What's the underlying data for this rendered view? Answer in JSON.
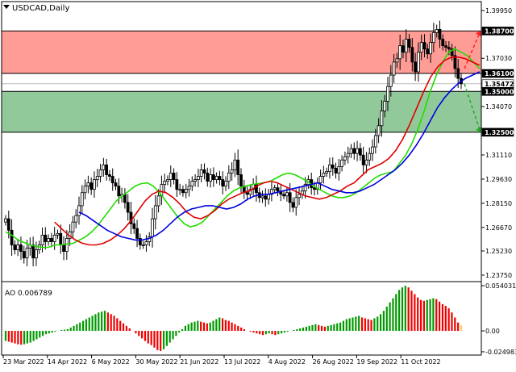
{
  "symbol_label": "USDCAD,Daily",
  "chart_data": [
    {
      "type": "candlestick",
      "title": "USDCAD,Daily",
      "ylim": [
        1.235,
        1.405
      ],
      "y_ticks": [
        "1.39950",
        "1.37030",
        "1.34070",
        "1.31110",
        "1.29630",
        "1.28150",
        "1.26670",
        "1.25230",
        "1.23750"
      ],
      "x_ticks": [
        "23 Mar 2022",
        "14 Apr 2022",
        "6 May 2022",
        "30 May 2022",
        "21 Jun 2022",
        "13 Jul 2022",
        "4 Aug 2022",
        "26 Aug 2022",
        "19 Sep 2022",
        "11 Oct 2022"
      ],
      "price_tags": [
        {
          "label": "1.38700",
          "value": 1.387,
          "bg": "#000000",
          "fg": "#ffffff"
        },
        {
          "label": "1.36100",
          "value": 1.361,
          "bg": "#000000",
          "fg": "#ffffff"
        },
        {
          "label": "1.35472",
          "value": 1.3547,
          "bg": "#ffffff",
          "fg": "#000000"
        },
        {
          "label": "1.35000",
          "value": 1.35,
          "bg": "#000000",
          "fg": "#ffffff"
        },
        {
          "label": "1.32500",
          "value": 1.325,
          "bg": "#000000",
          "fg": "#ffffff"
        }
      ],
      "zones": [
        {
          "name": "resistance",
          "from": 1.361,
          "to": 1.387,
          "color": "#ff9c96"
        },
        {
          "name": "support",
          "from": 1.325,
          "to": 1.35,
          "color": "#92c99a"
        }
      ],
      "current_price": 1.3547,
      "close": [
        1.272,
        1.265,
        1.256,
        1.253,
        1.256,
        1.252,
        1.248,
        1.254,
        1.256,
        1.248,
        1.253,
        1.256,
        1.262,
        1.258,
        1.26,
        1.258,
        1.262,
        1.263,
        1.256,
        1.252,
        1.26,
        1.264,
        1.27,
        1.274,
        1.28,
        1.288,
        1.292,
        1.294,
        1.29,
        1.296,
        1.298,
        1.302,
        1.305,
        1.299,
        1.298,
        1.294,
        1.292,
        1.286,
        1.287,
        1.282,
        1.276,
        1.269,
        1.266,
        1.26,
        1.256,
        1.256,
        1.258,
        1.261,
        1.272,
        1.28,
        1.286,
        1.293,
        1.295,
        1.296,
        1.3,
        1.296,
        1.29,
        1.29,
        1.288,
        1.29,
        1.292,
        1.295,
        1.296,
        1.298,
        1.302,
        1.3,
        1.295,
        1.299,
        1.296,
        1.298,
        1.296,
        1.292,
        1.295,
        1.3,
        1.302,
        1.308,
        1.299,
        1.292,
        1.288,
        1.287,
        1.29,
        1.293,
        1.288,
        1.285,
        1.286,
        1.284,
        1.287,
        1.29,
        1.291,
        1.289,
        1.287,
        1.286,
        1.288,
        1.282,
        1.279,
        1.285,
        1.287,
        1.289,
        1.293,
        1.296,
        1.291,
        1.29,
        1.294,
        1.298,
        1.3,
        1.301,
        1.305,
        1.303,
        1.3,
        1.304,
        1.308,
        1.31,
        1.312,
        1.315,
        1.312,
        1.315,
        1.311,
        1.305,
        1.308,
        1.312,
        1.316,
        1.323,
        1.329,
        1.338,
        1.344,
        1.353,
        1.36,
        1.368,
        1.37,
        1.378,
        1.374,
        1.382,
        1.377,
        1.368,
        1.362,
        1.374,
        1.38,
        1.376,
        1.373,
        1.38,
        1.386,
        1.388,
        1.382,
        1.378,
        1.377,
        1.376,
        1.372,
        1.364,
        1.358,
        1.3547
      ],
      "series": [
        {
          "name": "Alligator Lips",
          "color": "#22dd00",
          "values": [
            1.264,
            1.262,
            1.259,
            1.2575,
            1.256,
            1.255,
            1.2545,
            1.2545,
            1.256,
            1.256,
            1.2565,
            1.257,
            1.259,
            1.261,
            1.264,
            1.268,
            1.273,
            1.278,
            1.283,
            1.286,
            1.289,
            1.292,
            1.2935,
            1.294,
            1.292,
            1.288,
            1.283,
            1.278,
            1.273,
            1.269,
            1.267,
            1.268,
            1.27,
            1.274,
            1.278,
            1.282,
            1.286,
            1.289,
            1.291,
            1.292,
            1.293,
            1.2935,
            1.294,
            1.295,
            1.297,
            1.299,
            1.3,
            1.299,
            1.297,
            1.295,
            1.292,
            1.29,
            1.288,
            1.286,
            1.285,
            1.285,
            1.286,
            1.288,
            1.291,
            1.294,
            1.297,
            1.299,
            1.3,
            1.301,
            1.306,
            1.311,
            1.318,
            1.327,
            1.338,
            1.35,
            1.36,
            1.368,
            1.374,
            1.376,
            1.374,
            1.372,
            1.368,
            1.364
          ],
          "start": 0
        },
        {
          "name": "Alligator Teeth",
          "color": "#e00000",
          "values": [
            1.27,
            1.266,
            1.262,
            1.259,
            1.257,
            1.256,
            1.256,
            1.257,
            1.259,
            1.262,
            1.266,
            1.271,
            1.277,
            1.283,
            1.287,
            1.289,
            1.288,
            1.285,
            1.281,
            1.276,
            1.273,
            1.272,
            1.274,
            1.277,
            1.281,
            1.284,
            1.286,
            1.288,
            1.289,
            1.292,
            1.294,
            1.295,
            1.294,
            1.292,
            1.29,
            1.288,
            1.286,
            1.285,
            1.284,
            1.285,
            1.287,
            1.289,
            1.292,
            1.294,
            1.298,
            1.302,
            1.304,
            1.306,
            1.309,
            1.314,
            1.321,
            1.33,
            1.34,
            1.35,
            1.359,
            1.365,
            1.369,
            1.371,
            1.371,
            1.37,
            1.368,
            1.366
          ],
          "start": 16
        },
        {
          "name": "Alligator Jaw",
          "color": "#0000e0",
          "values": [
            1.276,
            1.274,
            1.271,
            1.268,
            1.265,
            1.263,
            1.261,
            1.26,
            1.259,
            1.259,
            1.26,
            1.262,
            1.265,
            1.269,
            1.273,
            1.276,
            1.278,
            1.279,
            1.28,
            1.28,
            1.279,
            1.278,
            1.279,
            1.281,
            1.284,
            1.286,
            1.287,
            1.287,
            1.288,
            1.289,
            1.29,
            1.291,
            1.292,
            1.293,
            1.294,
            1.292,
            1.29,
            1.289,
            1.288,
            1.288,
            1.289,
            1.291,
            1.293,
            1.296,
            1.299,
            1.302,
            1.306,
            1.311,
            1.317,
            1.324,
            1.332,
            1.34,
            1.346,
            1.351,
            1.355,
            1.358,
            1.36,
            1.362
          ],
          "start": 24
        }
      ],
      "forecast": [
        {
          "name": "up",
          "color": "#ff2020",
          "from": 1.364,
          "to": 1.387
        },
        {
          "name": "down",
          "color": "#22aa22",
          "from": 1.3547,
          "to": 1.325
        }
      ]
    },
    {
      "type": "bar",
      "title": "AO 0.006789",
      "ylim": [
        -0.026,
        0.056
      ],
      "y_ticks": [
        "0.054031",
        "0.00",
        "-0.024983"
      ],
      "up_color": "#009900",
      "down_color": "#ee0000",
      "last_color": "#ffcc66",
      "values": [
        -0.012,
        -0.013,
        -0.014,
        -0.015,
        -0.016,
        -0.0165,
        -0.016,
        -0.015,
        -0.014,
        -0.012,
        -0.01,
        -0.008,
        -0.006,
        -0.004,
        -0.003,
        -0.002,
        -0.001,
        0.0,
        0.001,
        0.0015,
        0.002,
        0.004,
        0.006,
        0.008,
        0.01,
        0.012,
        0.014,
        0.016,
        0.018,
        0.02,
        0.022,
        0.023,
        0.024,
        0.022,
        0.02,
        0.018,
        0.015,
        0.012,
        0.009,
        0.006,
        0.003,
        0.0,
        -0.003,
        -0.006,
        -0.009,
        -0.012,
        -0.015,
        -0.017,
        -0.02,
        -0.023,
        -0.024,
        -0.022,
        -0.018,
        -0.014,
        -0.01,
        -0.006,
        -0.002,
        0.002,
        0.006,
        0.008,
        0.01,
        0.011,
        0.012,
        0.011,
        0.01,
        0.009,
        0.01,
        0.012,
        0.014,
        0.016,
        0.015,
        0.013,
        0.012,
        0.01,
        0.008,
        0.006,
        0.004,
        0.002,
        0.0,
        -0.001,
        -0.002,
        -0.003,
        -0.004,
        -0.005,
        -0.004,
        -0.003,
        -0.004,
        -0.005,
        -0.004,
        -0.003,
        -0.002,
        -0.001,
        0.0,
        0.001,
        0.002,
        0.003,
        0.004,
        0.005,
        0.006,
        0.007,
        0.008,
        0.007,
        0.006,
        0.005,
        0.006,
        0.007,
        0.008,
        0.009,
        0.01,
        0.012,
        0.014,
        0.015,
        0.016,
        0.017,
        0.018,
        0.016,
        0.015,
        0.014,
        0.013,
        0.015,
        0.017,
        0.02,
        0.024,
        0.029,
        0.034,
        0.039,
        0.044,
        0.049,
        0.052,
        0.054,
        0.052,
        0.048,
        0.044,
        0.04,
        0.037,
        0.036,
        0.037,
        0.038,
        0.039,
        0.038,
        0.035,
        0.032,
        0.03,
        0.027,
        0.022,
        0.016,
        0.01,
        0.0068
      ]
    }
  ]
}
